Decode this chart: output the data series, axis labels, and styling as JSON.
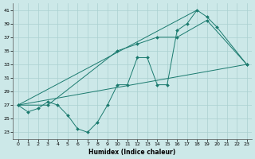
{
  "xlabel": "Humidex (Indice chaleur)",
  "background_color": "#cce8e8",
  "grid_color": "#aad0d0",
  "line_color": "#1a7a6e",
  "xlim": [
    -0.5,
    23.5
  ],
  "ylim": [
    22,
    42
  ],
  "xticks": [
    0,
    1,
    2,
    3,
    4,
    5,
    6,
    7,
    8,
    9,
    10,
    11,
    12,
    13,
    14,
    15,
    16,
    17,
    18,
    19,
    20,
    21,
    22,
    23
  ],
  "yticks": [
    23,
    25,
    27,
    29,
    31,
    33,
    35,
    37,
    39,
    41
  ],
  "series": [
    {
      "x": [
        0,
        1,
        2,
        3,
        4,
        5,
        6,
        7,
        8,
        9,
        10,
        11,
        12,
        13,
        14,
        15,
        16,
        17,
        18,
        19,
        20,
        23
      ],
      "y": [
        27,
        26,
        26.5,
        27.5,
        27,
        25.5,
        23.5,
        23,
        24.5,
        27,
        30,
        30,
        34,
        34,
        30,
        30,
        38,
        39,
        41,
        40,
        38.5,
        33
      ]
    },
    {
      "x": [
        0,
        3,
        10,
        12,
        14,
        16,
        19,
        23
      ],
      "y": [
        27,
        27,
        35,
        36,
        37,
        37,
        39.5,
        33
      ]
    },
    {
      "x": [
        0,
        23
      ],
      "y": [
        27,
        33
      ]
    },
    {
      "x": [
        0,
        18
      ],
      "y": [
        27,
        41
      ]
    }
  ]
}
